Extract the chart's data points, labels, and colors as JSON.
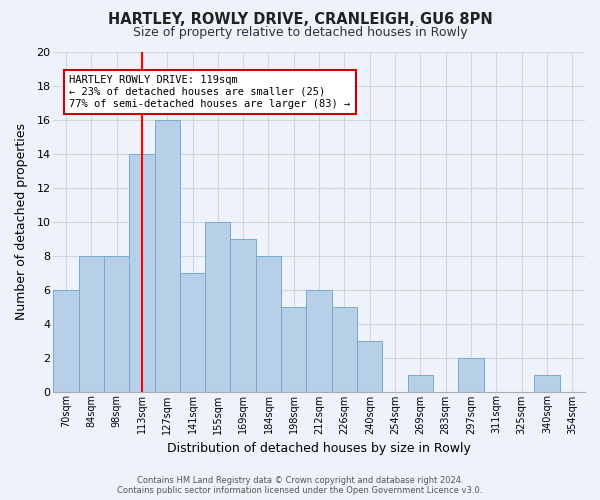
{
  "title": "HARTLEY, ROWLY DRIVE, CRANLEIGH, GU6 8PN",
  "subtitle": "Size of property relative to detached houses in Rowly",
  "xlabel": "Distribution of detached houses by size in Rowly",
  "ylabel": "Number of detached properties",
  "footer_line1": "Contains HM Land Registry data © Crown copyright and database right 2024.",
  "footer_line2": "Contains public sector information licensed under the Open Government Licence v3.0.",
  "bin_labels": [
    "70sqm",
    "84sqm",
    "98sqm",
    "113sqm",
    "127sqm",
    "141sqm",
    "155sqm",
    "169sqm",
    "184sqm",
    "198sqm",
    "212sqm",
    "226sqm",
    "240sqm",
    "254sqm",
    "269sqm",
    "283sqm",
    "297sqm",
    "311sqm",
    "325sqm",
    "340sqm",
    "354sqm"
  ],
  "bar_heights": [
    6,
    8,
    8,
    14,
    16,
    7,
    10,
    9,
    8,
    5,
    6,
    5,
    3,
    0,
    1,
    0,
    2,
    0,
    0,
    1,
    0
  ],
  "bar_color": "#b8cfe8",
  "bar_edge_color": "#7aaad0",
  "grid_color": "#ccd6e8",
  "background_color": "#eef2fa",
  "annotation_line1": "HARTLEY ROWLY DRIVE: 119sqm",
  "annotation_line2": "← 23% of detached houses are smaller (25)",
  "annotation_line3": "77% of semi-detached houses are larger (83) →",
  "red_line_x": 3.5,
  "ylim": [
    0,
    20
  ],
  "yticks": [
    0,
    2,
    4,
    6,
    8,
    10,
    12,
    14,
    16,
    18,
    20
  ]
}
